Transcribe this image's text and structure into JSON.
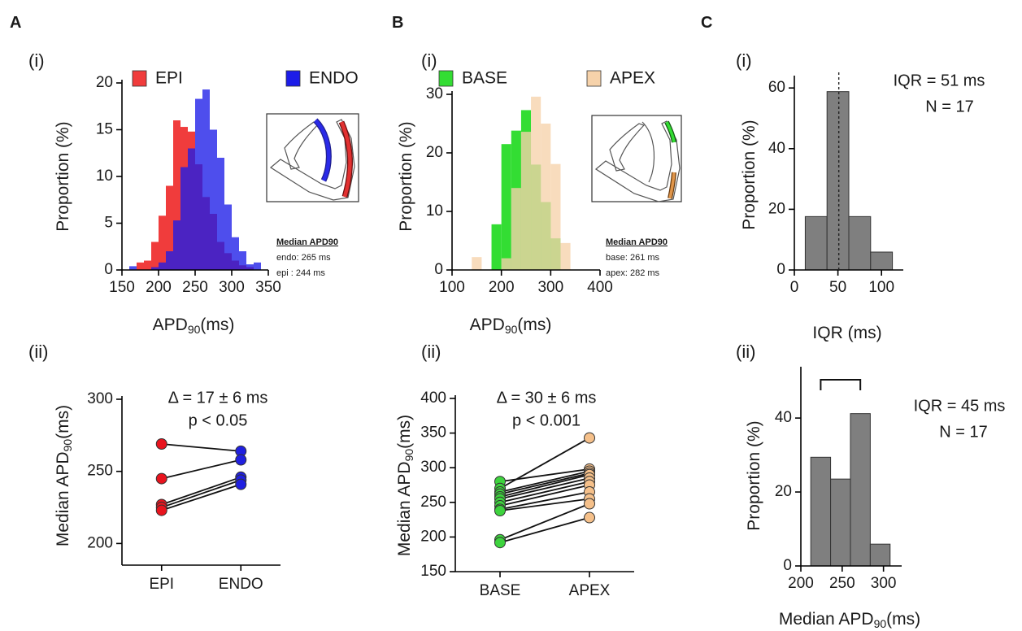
{
  "panel_labels": {
    "letters": [
      "A",
      "B",
      "C"
    ],
    "sub": [
      "(i)",
      "(ii)"
    ]
  },
  "chart_data": [
    {
      "type": "histogram",
      "bins": [
        160,
        170,
        180,
        190,
        200,
        210,
        220,
        230,
        240,
        250,
        260,
        270,
        280,
        290,
        300,
        310,
        320,
        330,
        340
      ],
      "series": [
        {
          "name": "EPI",
          "color": "#f03c3c",
          "values": [
            0,
            0.8,
            1.0,
            3.0,
            5.8,
            9.0,
            16.0,
            15.3,
            14.8,
            11.3,
            7.8,
            6.0,
            3.0,
            1.8,
            1.0,
            0.5,
            0.3,
            0
          ]
        },
        {
          "name": "ENDO",
          "color": "#1c1ce8",
          "values": [
            0.4,
            0,
            0,
            0.3,
            0.8,
            2.0,
            5.3,
            11.0,
            13.0,
            18.3,
            19.3,
            15.0,
            12.0,
            7.0,
            3.5,
            2.0,
            0.6,
            0.8
          ]
        }
      ],
      "xlim": [
        150,
        350
      ],
      "xticks": [
        150,
        200,
        250,
        300,
        350
      ],
      "ylim": [
        0,
        20
      ],
      "yticks": [
        0,
        5,
        10,
        15,
        20
      ],
      "x_label": [
        "APD",
        "90",
        "(ms)"
      ],
      "y_label": [
        "Proportion (%)"
      ],
      "inset_text": [
        "Median APD90",
        "endo: 265 ms",
        "epi   : 244 ms"
      ]
    },
    {
      "type": "paired_dot",
      "categories": [
        "EPI",
        "ENDO"
      ],
      "colors": [
        "#e8141e",
        "#2020e0"
      ],
      "values": [
        [
          269,
          245,
          227,
          225,
          223
        ],
        [
          264,
          258,
          246,
          244,
          241
        ]
      ],
      "ylim": [
        185,
        300
      ],
      "yticks": [
        200,
        250,
        300
      ],
      "y_label": [
        "Median APD",
        "90",
        "(ms)"
      ],
      "annotations": [
        "Δ = 17 ± 6 ms",
        "p < 0.05"
      ]
    },
    {
      "type": "histogram",
      "bins": [
        140,
        160,
        180,
        200,
        220,
        240,
        260,
        280,
        300,
        320,
        340,
        360
      ],
      "series": [
        {
          "name": "BASE",
          "color": "#33dd33",
          "values": [
            0,
            0,
            7.8,
            21.5,
            23.8,
            27.3,
            18.0,
            11.6,
            5.4,
            0,
            0
          ]
        },
        {
          "name": "APEX",
          "color": "#f6d2aa",
          "values": [
            2.2,
            0,
            0,
            2.0,
            14.0,
            23.6,
            29.6,
            25.0,
            18.1,
            4.6,
            0
          ]
        }
      ],
      "xlim": [
        100,
        400
      ],
      "xticks": [
        100,
        200,
        300,
        400
      ],
      "ylim": [
        0,
        30
      ],
      "yticks": [
        0,
        10,
        20,
        30
      ],
      "x_label": [
        "APD",
        "90",
        "(ms)"
      ],
      "y_label": [
        "Proportion (%)"
      ],
      "inset_text": [
        "Median APD90",
        "base: 261 ms",
        "apex: 282 ms"
      ]
    },
    {
      "type": "paired_dot",
      "categories": [
        "BASE",
        "APEX"
      ],
      "colors": [
        "#3ed33e",
        "#f5c08a"
      ],
      "values": [
        [
          280,
          270,
          265,
          262,
          258,
          255,
          250,
          245,
          240,
          238,
          196,
          192
        ],
        [
          298,
          343,
          295,
          292,
          290,
          285,
          280,
          275,
          265,
          255,
          248,
          228
        ]
      ],
      "ylim": [
        150,
        400
      ],
      "yticks": [
        150,
        200,
        250,
        300,
        350,
        400
      ],
      "y_label": [
        "Median APD",
        "90",
        "(ms)"
      ],
      "annotations": [
        "Δ = 30 ± 6 ms",
        "p < 0.001"
      ]
    },
    {
      "type": "histogram",
      "bins": [
        12.5,
        37.5,
        62.5,
        87.5,
        112.5
      ],
      "series": [
        {
          "color": "#7f7f7f",
          "values": [
            17.6,
            58.8,
            17.6,
            5.9
          ]
        }
      ],
      "reference_line": 51,
      "xlim": [
        0,
        125
      ],
      "xticks": [
        0,
        50,
        100
      ],
      "ylim": [
        0,
        63
      ],
      "yticks": [
        0,
        20,
        40,
        60
      ],
      "x_label": [
        "IQR (ms)"
      ],
      "y_label": [
        "Proportion (%)"
      ],
      "annotations": [
        "IQR = 51 ms",
        "N = 17"
      ]
    },
    {
      "type": "histogram",
      "bins": [
        212,
        236,
        260,
        284,
        308
      ],
      "series": [
        {
          "color": "#7f7f7f",
          "values": [
            29.4,
            23.5,
            41.2,
            5.9
          ]
        }
      ],
      "bracket": true,
      "xlim": [
        200,
        322
      ],
      "xticks": [
        200,
        250,
        300
      ],
      "ylim": [
        0,
        53
      ],
      "yticks": [
        0,
        20,
        40
      ],
      "x_label": [
        "Median APD",
        "90",
        "(ms)"
      ],
      "y_label": [
        "Proportion (%)"
      ],
      "annotations": [
        "IQR = 45 ms",
        "N = 17"
      ]
    }
  ]
}
